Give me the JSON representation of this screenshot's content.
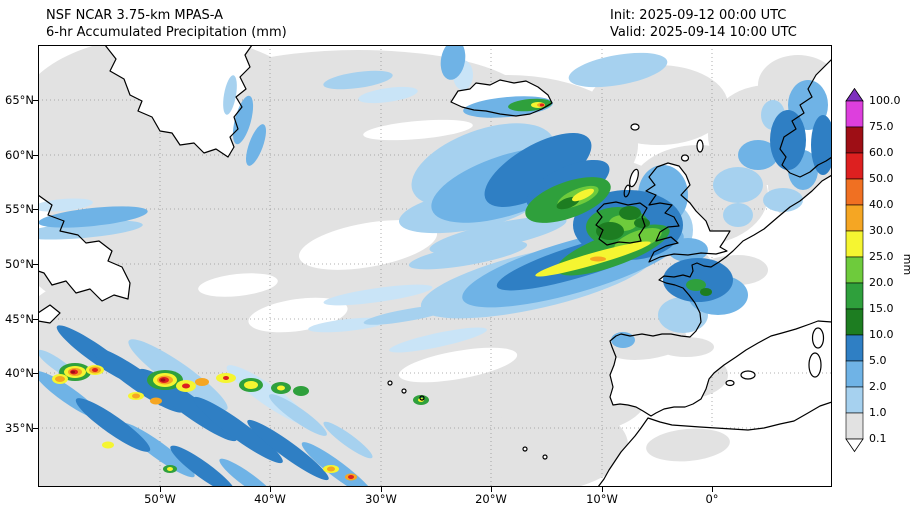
{
  "header": {
    "model": "NSF NCAR 3.75-km MPAS-A",
    "product": "6-hr Accumulated Precipitation (mm)",
    "init": "Init: 2025-09-12 00:00 UTC",
    "valid": "Valid: 2025-09-14 10:00 UTC"
  },
  "axes": {
    "lat_labels": [
      "65°N",
      "60°N",
      "55°N",
      "50°N",
      "45°N",
      "40°N",
      "35°N"
    ],
    "lon_labels": [
      "50°W",
      "40°W",
      "30°W",
      "20°W",
      "10°W",
      "0°"
    ]
  },
  "colorbar": {
    "unit": "mm",
    "boundary_labels_top_to_bottom": [
      "100.0",
      "75.0",
      "60.0",
      "50.0",
      "40.0",
      "30.0",
      "25.0",
      "20.0",
      "15.0",
      "10.0",
      "5.0",
      "2.0",
      "1.0",
      "0.1"
    ],
    "segment_colors_top_to_bottom": [
      "#dd3fdd",
      "#9e0e15",
      "#dd2020",
      "#f07022",
      "#f5a623",
      "#f5f531",
      "#6ecb3c",
      "#2fa03c",
      "#1d7d21",
      "#2f7fc4",
      "#6fb3e6",
      "#a6d1ef",
      "#e2e2e2"
    ],
    "over_color": "#7e2fbe",
    "under_color": "#ffffff"
  },
  "chart_data": {
    "type": "heatmap",
    "title": "6-hr Accumulated Precipitation (mm)",
    "model": "NSF NCAR 3.75-km MPAS-A",
    "init_time": "2025-09-12 00:00 UTC",
    "valid_time": "2025-09-14 10:00 UTC",
    "unit": "mm",
    "region": "North Atlantic / Western Europe",
    "x_axis": {
      "label": "longitude",
      "tick_labels": [
        "50°W",
        "40°W",
        "30°W",
        "20°W",
        "10°W",
        "0°"
      ]
    },
    "y_axis": {
      "label": "latitude",
      "tick_labels": [
        "65°N",
        "60°N",
        "55°N",
        "50°N",
        "45°N",
        "40°N",
        "35°N"
      ]
    },
    "color_levels_mm": [
      0.1,
      1.0,
      2.0,
      5.0,
      10.0,
      15.0,
      20.0,
      25.0,
      30.0,
      40.0,
      50.0,
      60.0,
      75.0,
      100.0
    ],
    "legend_position": "right"
  }
}
